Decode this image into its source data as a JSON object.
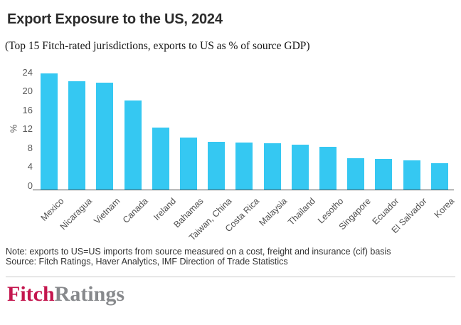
{
  "chart_data": {
    "type": "bar",
    "title": "Export Exposure to the US, 2024",
    "subtitle": "(Top 15 Fitch-rated jurisdictions, exports to US as % of source GDP)",
    "categories": [
      "Mexico",
      "Nicaragua",
      "Vietnam",
      "Canada",
      "Ireland",
      "Bahamas",
      "Taiwan, China",
      "Costa Rica",
      "Malaysia",
      "Thailand",
      "Lesotho",
      "Singapore",
      "Ecuador",
      "El Salvador",
      "Korea"
    ],
    "values": [
      24.7,
      23.0,
      22.7,
      18.9,
      13.3,
      11.2,
      10.2,
      10.1,
      10.0,
      9.7,
      9.2,
      6.8,
      6.7,
      6.3,
      5.7
    ],
    "xlabel": "",
    "ylabel": "%",
    "yticks": [
      0,
      4,
      8,
      12,
      16,
      20,
      24
    ],
    "ylim": [
      0,
      25.6
    ],
    "grid": false,
    "legend": false,
    "bar_color": "#35C8F2",
    "axis_color": "#4a4a4a"
  },
  "footer": {
    "note": "Note: exports to US=US imports from source measured on a cost, freight and insurance (cif) basis",
    "source": "Source: Fitch Ratings, Haver Analytics, IMF Direction of Trade Statistics"
  },
  "logo": {
    "part1": "Fitch",
    "part2": "Ratings",
    "part1_color": "#C4164E",
    "part2_color": "#87898C"
  }
}
